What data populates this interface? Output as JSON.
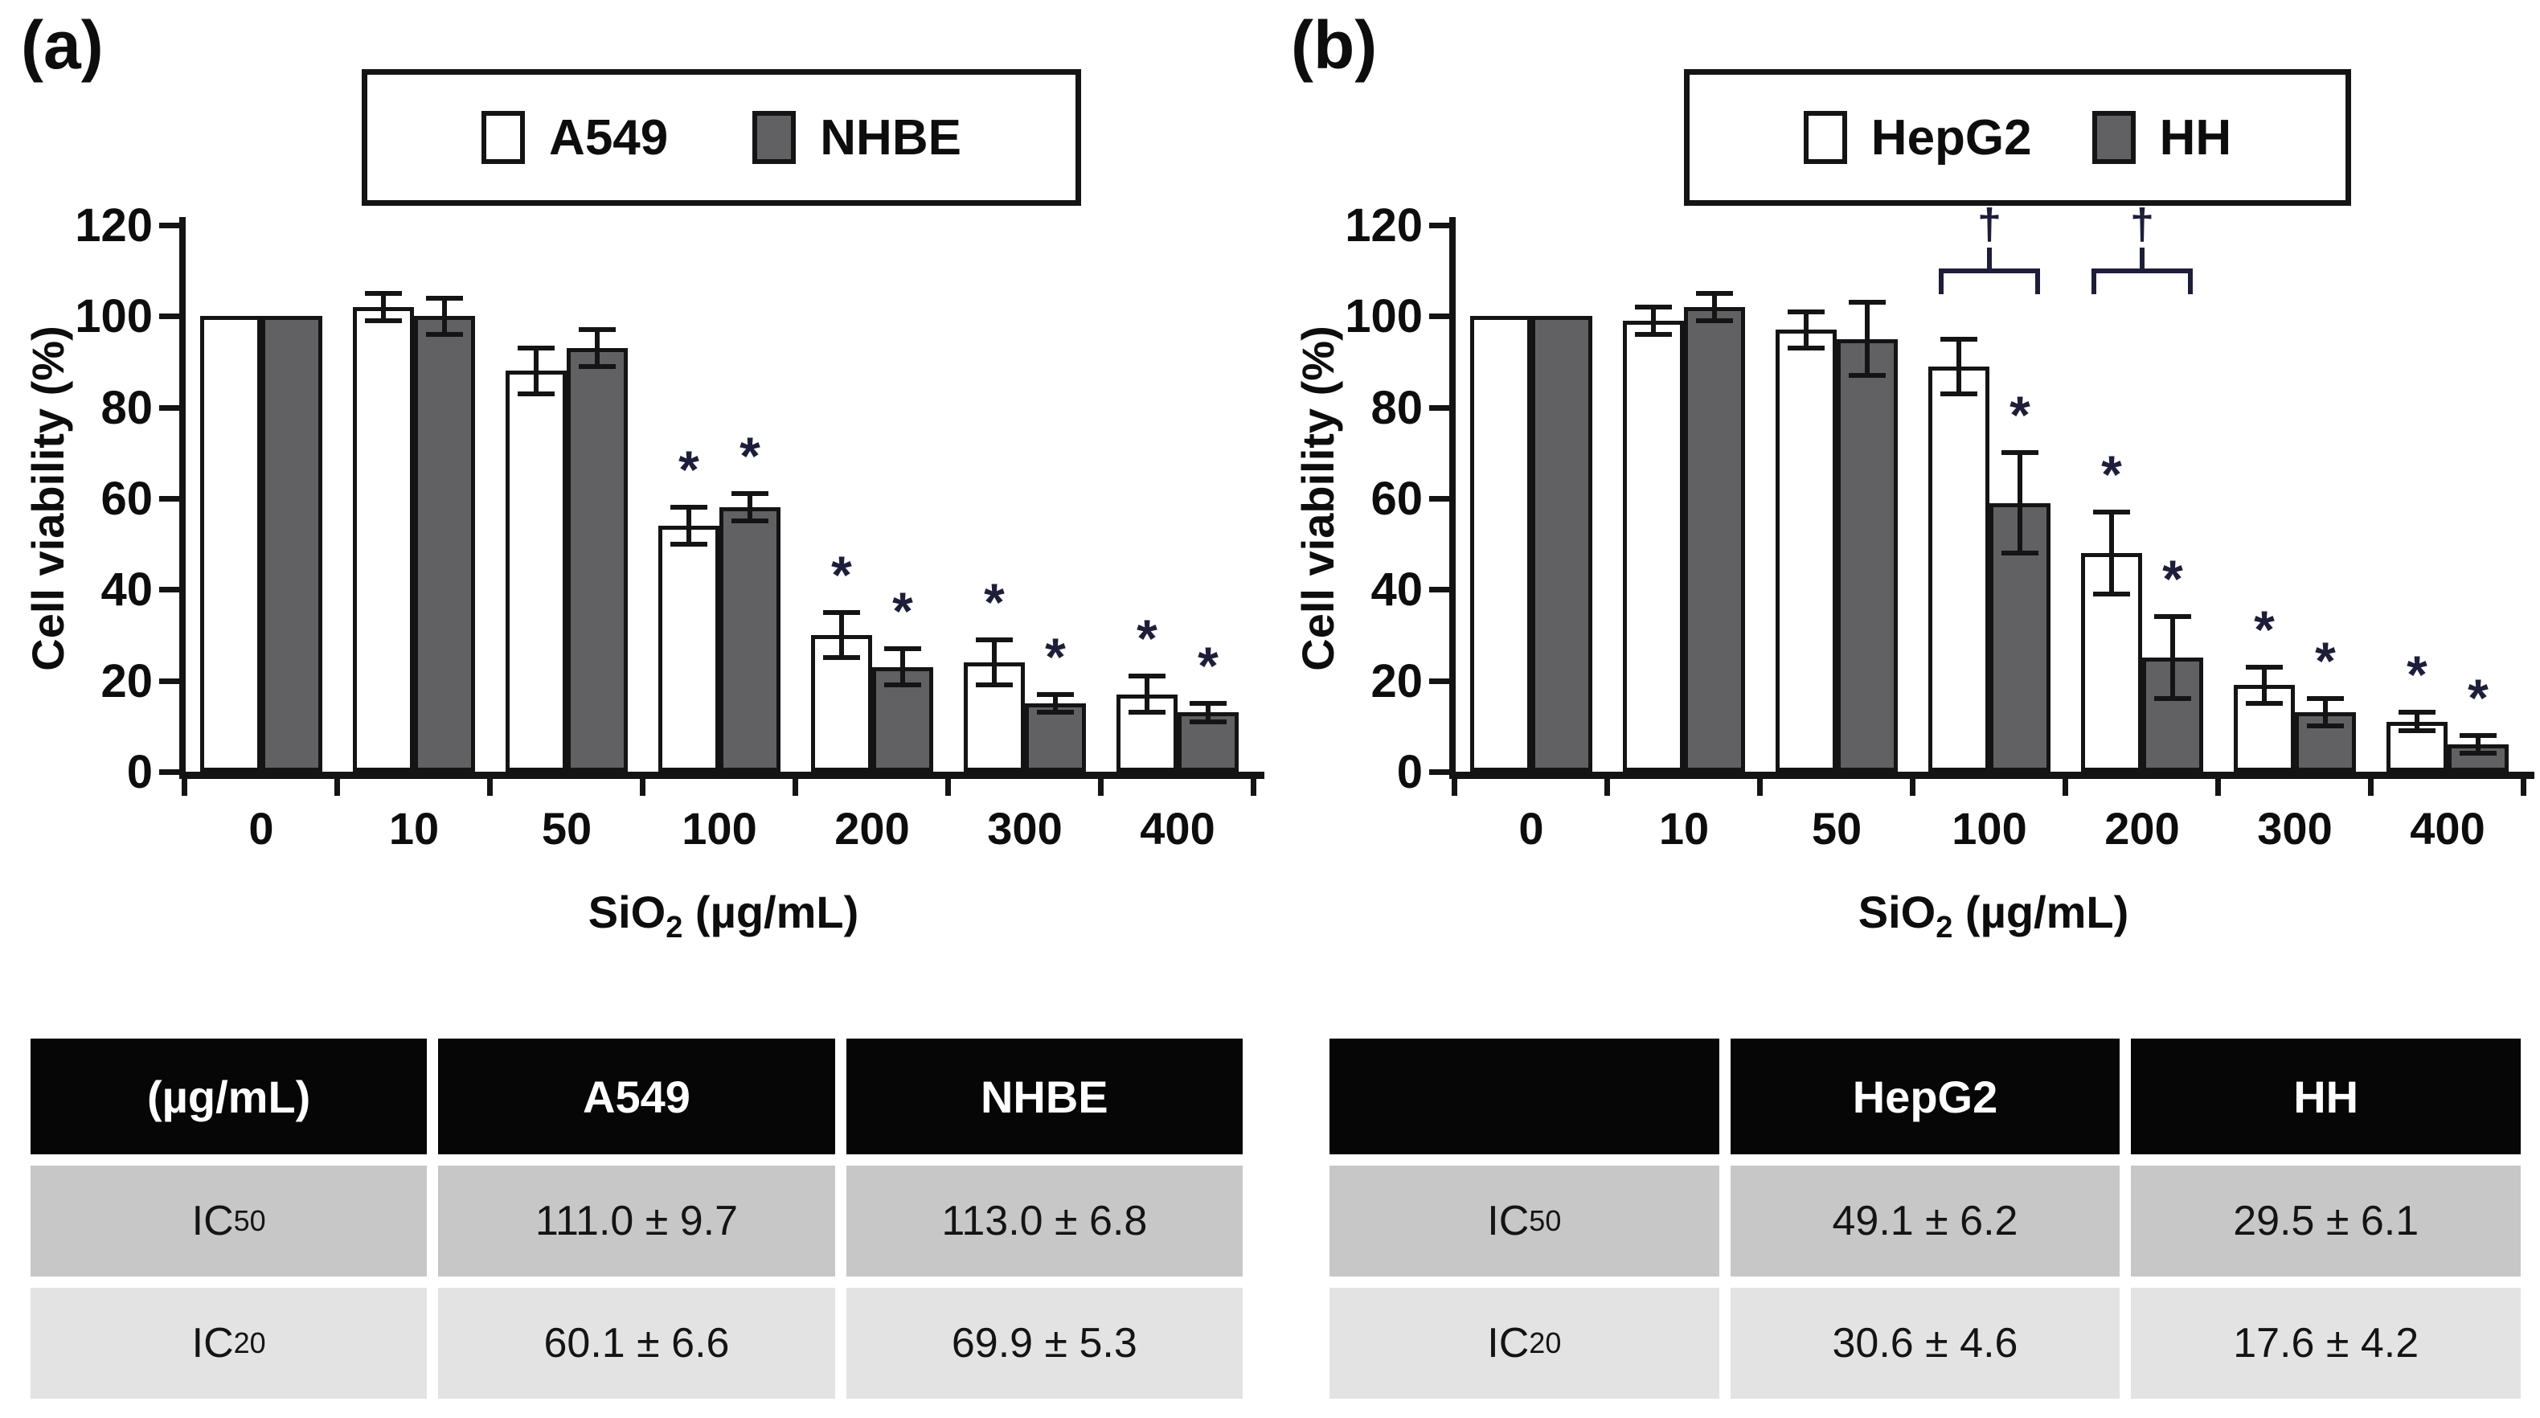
{
  "colors": {
    "white_bar": "#ffffff",
    "gray_bar": "#616163",
    "axis": "#141414",
    "table_header_bg": "#060606",
    "table_row1_bg": "#c7c7c7",
    "table_row2_bg": "#e3e3e3",
    "annotation": "#1e1e3a"
  },
  "chart_data": [
    {
      "type": "bar",
      "panel": "(a)",
      "title": "",
      "xlabel": "SiO2 (µg/mL)",
      "ylabel": "Cell viability (%)",
      "categories": [
        "0",
        "10",
        "50",
        "100",
        "200",
        "300",
        "400"
      ],
      "ylim": [
        0,
        120
      ],
      "yticks": [
        0,
        20,
        40,
        60,
        80,
        100,
        120
      ],
      "legend_position": "top",
      "grid": false,
      "series": [
        {
          "name": "A549",
          "fill": "#ffffff",
          "values": [
            100,
            102,
            88,
            54,
            30,
            24,
            17
          ],
          "errors": [
            0,
            3,
            5,
            4,
            5,
            5,
            4
          ],
          "sig": [
            "",
            "",
            "",
            "*",
            "*",
            "*",
            "*"
          ]
        },
        {
          "name": "NHBE",
          "fill": "#616163",
          "values": [
            100,
            100,
            93,
            58,
            23,
            15,
            13
          ],
          "errors": [
            0,
            4,
            4,
            3,
            4,
            2,
            2
          ],
          "sig": [
            "",
            "",
            "",
            "*",
            "*",
            "*",
            "*"
          ]
        }
      ],
      "group_annotations": [
        "",
        "",
        "",
        "",
        "",
        "",
        ""
      ]
    },
    {
      "type": "bar",
      "panel": "(b)",
      "title": "",
      "xlabel": "SiO2 (µg/mL)",
      "ylabel": "Cell viability (%)",
      "categories": [
        "0",
        "10",
        "50",
        "100",
        "200",
        "300",
        "400"
      ],
      "ylim": [
        0,
        120
      ],
      "yticks": [
        0,
        20,
        40,
        60,
        80,
        100,
        120
      ],
      "legend_position": "top",
      "grid": false,
      "series": [
        {
          "name": "HepG2",
          "fill": "#ffffff",
          "values": [
            100,
            99,
            97,
            89,
            48,
            19,
            11
          ],
          "errors": [
            0,
            3,
            4,
            6,
            9,
            4,
            2
          ],
          "sig": [
            "",
            "",
            "",
            "",
            "*",
            "*",
            "*"
          ]
        },
        {
          "name": "HH",
          "fill": "#616163",
          "values": [
            100,
            102,
            95,
            59,
            25,
            13,
            6
          ],
          "errors": [
            0,
            3,
            8,
            11,
            9,
            3,
            2
          ],
          "sig": [
            "",
            "",
            "",
            "*",
            "*",
            "*",
            "*"
          ]
        }
      ],
      "group_annotations": [
        "",
        "",
        "",
        "†",
        "†",
        "",
        ""
      ]
    }
  ],
  "panels": [
    {
      "label": "(a)",
      "ylabel": "Cell viability (%)",
      "xlabel": {
        "main": "SiO",
        "sub": "2",
        "rest": " (µg/mL)"
      },
      "legend": [
        {
          "name": "A549",
          "fill": "#ffffff"
        },
        {
          "name": "NHBE",
          "fill": "#616163"
        }
      ],
      "table": {
        "header": [
          "(µg/mL)",
          "A549",
          "NHBE"
        ],
        "rows": [
          {
            "label": {
              "base": "IC",
              "sub": "50"
            },
            "cells": [
              "111.0 ± 9.7",
              "113.0 ± 6.8"
            ]
          },
          {
            "label": {
              "base": "IC",
              "sub": "20"
            },
            "cells": [
              "60.1 ± 6.6",
              "69.9 ± 5.3"
            ]
          }
        ]
      }
    },
    {
      "label": "(b)",
      "ylabel": "Cell viability (%)",
      "xlabel": {
        "main": "SiO",
        "sub": "2",
        "rest": " (µg/mL)"
      },
      "legend": [
        {
          "name": "HepG2",
          "fill": "#ffffff"
        },
        {
          "name": "HH",
          "fill": "#616163"
        }
      ],
      "table": {
        "header": [
          "",
          "HepG2",
          "HH"
        ],
        "rows": [
          {
            "label": {
              "base": "IC",
              "sub": "50"
            },
            "cells": [
              "49.1 ± 6.2",
              "29.5 ± 6.1"
            ]
          },
          {
            "label": {
              "base": "IC",
              "sub": "20"
            },
            "cells": [
              "30.6 ± 4.6",
              "17.6 ± 4.2"
            ]
          }
        ]
      }
    }
  ]
}
